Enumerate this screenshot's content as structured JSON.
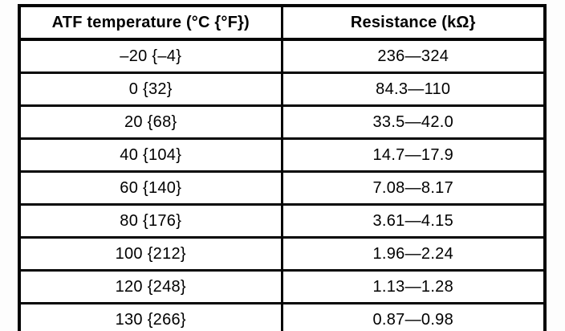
{
  "table": {
    "columns": {
      "temperature": "ATF temperature (°C {°F})",
      "resistance": "Resistance (kΩ}"
    },
    "rows": [
      {
        "temperature": "–20 {–4}",
        "resistance": "236—324"
      },
      {
        "temperature": "0 {32}",
        "resistance": "84.3—110"
      },
      {
        "temperature": "20 {68}",
        "resistance": "33.5—42.0"
      },
      {
        "temperature": "40 {104}",
        "resistance": "14.7—17.9"
      },
      {
        "temperature": "60 {140}",
        "resistance": "7.08—8.17"
      },
      {
        "temperature": "80 {176}",
        "resistance": "3.61—4.15"
      },
      {
        "temperature": "100 {212}",
        "resistance": "1.96—2.24"
      },
      {
        "temperature": "120 {248}",
        "resistance": "1.13—1.28"
      },
      {
        "temperature": "130 {266}",
        "resistance": "0.87—0.98"
      }
    ]
  }
}
